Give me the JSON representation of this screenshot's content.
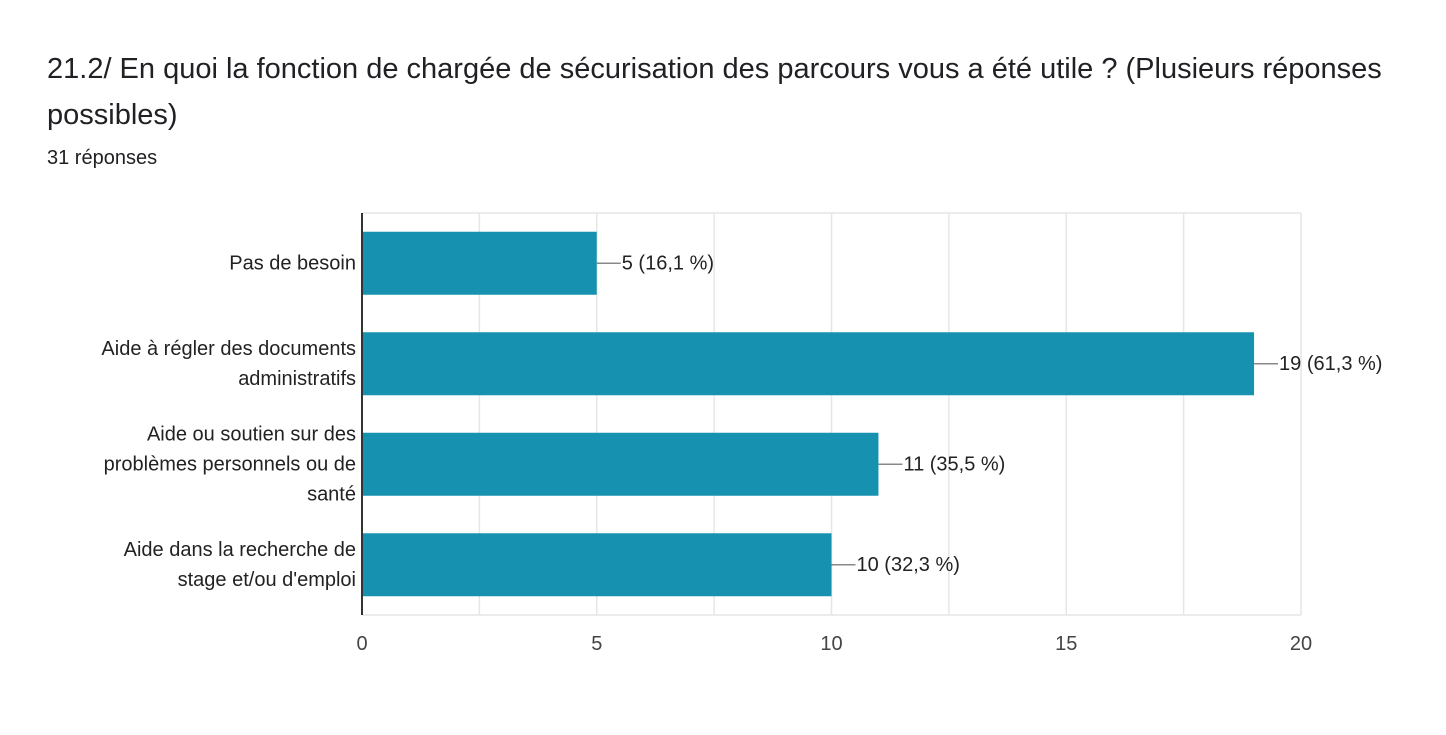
{
  "question": {
    "title": "21.2/ En quoi la fonction de chargée de sécurisation des parcours vous a été utile ? (Plusieurs réponses possibles)",
    "response_count": "31 réponses"
  },
  "colors": {
    "bar": "#1692b0",
    "grid": "#e6e6e6",
    "axis": "#333333",
    "leader": "#888888"
  },
  "chart_data": {
    "type": "bar",
    "orientation": "horizontal",
    "categories": [
      [
        "Pas de besoin"
      ],
      [
        "Aide à régler des documents",
        "administratifs"
      ],
      [
        "Aide ou soutien sur des",
        "problèmes personnels ou de",
        "santé"
      ],
      [
        "Aide dans la recherche de",
        "stage et/ou d'emploi"
      ]
    ],
    "values": [
      5,
      19,
      11,
      10
    ],
    "data_labels": [
      "5 (16,1 %)",
      "19 (61,3 %)",
      "11 (35,5 %)",
      "10 (32,3 %)"
    ],
    "xlim": [
      0,
      20
    ],
    "xticks": [
      0,
      5,
      10,
      15,
      20
    ],
    "xtick_labels": [
      "0",
      "5",
      "10",
      "15",
      "20"
    ],
    "grid": true,
    "title": "",
    "xlabel": "",
    "ylabel": ""
  }
}
